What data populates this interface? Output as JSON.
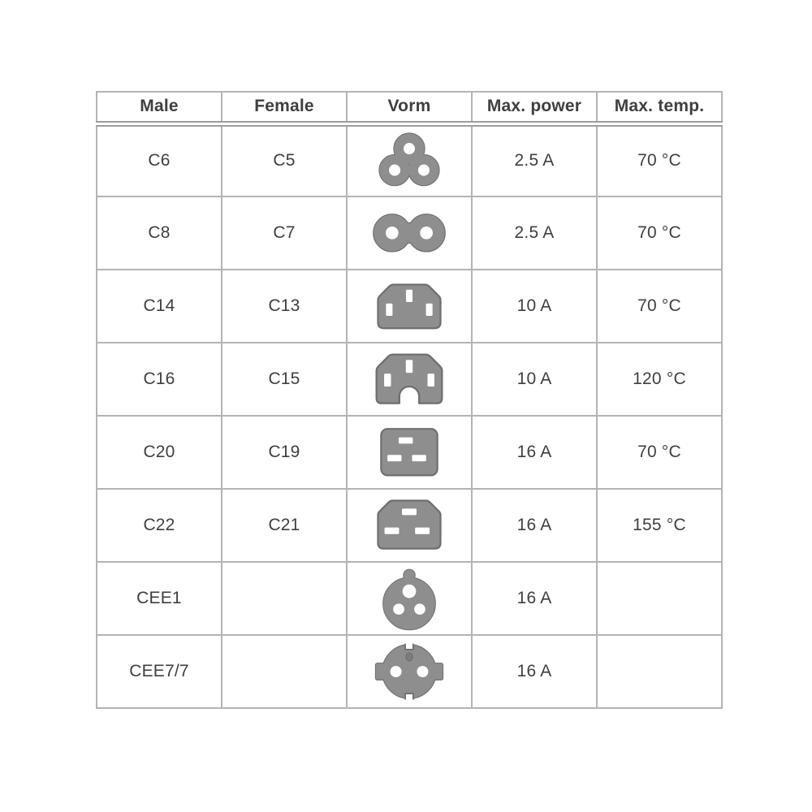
{
  "page": {
    "background": "#ffffff"
  },
  "colors": {
    "text": "#3f3f3f",
    "border": "#b4b4b4",
    "header_separator": "#9c9c9c",
    "icon_fill": "#8e8e8e",
    "icon_stroke": "#6f6f6f",
    "icon_dot": "#7c7c7c",
    "icon_hole": "#ffffff"
  },
  "table": {
    "headers": [
      "Male",
      "Female",
      "Vorm",
      "Max. power",
      "Max. temp."
    ],
    "rows": [
      {
        "male": "C6",
        "female": "C5",
        "shape": "c5",
        "icon": "c6-c5-cloverleaf-plug-icon",
        "max_power": "2.5 A",
        "max_temp": "70 °C"
      },
      {
        "male": "C8",
        "female": "C7",
        "shape": "c7",
        "icon": "c8-c7-figure8-plug-icon",
        "max_power": "2.5 A",
        "max_temp": "70 °C"
      },
      {
        "male": "C14",
        "female": "C13",
        "shape": "c13",
        "icon": "c14-c13-plug-icon",
        "max_power": "10 A",
        "max_temp": "70 °C"
      },
      {
        "male": "C16",
        "female": "C15",
        "shape": "c15",
        "icon": "c16-c15-notched-plug-icon",
        "max_power": "10 A",
        "max_temp": "120 °C"
      },
      {
        "male": "C20",
        "female": "C19",
        "shape": "c19",
        "icon": "c20-c19-plug-icon",
        "max_power": "16 A",
        "max_temp": "70 °C"
      },
      {
        "male": "C22",
        "female": "C21",
        "shape": "c21",
        "icon": "c22-c21-plug-icon",
        "max_power": "16 A",
        "max_temp": "155 °C"
      },
      {
        "male": "CEE1",
        "female": "",
        "shape": "cee1",
        "icon": "cee1-round-plug-icon",
        "max_power": "16 A",
        "max_temp": ""
      },
      {
        "male": "CEE7/7",
        "female": "",
        "shape": "cee7",
        "icon": "cee7-7-schuko-plug-icon",
        "max_power": "16 A",
        "max_temp": ""
      }
    ]
  }
}
